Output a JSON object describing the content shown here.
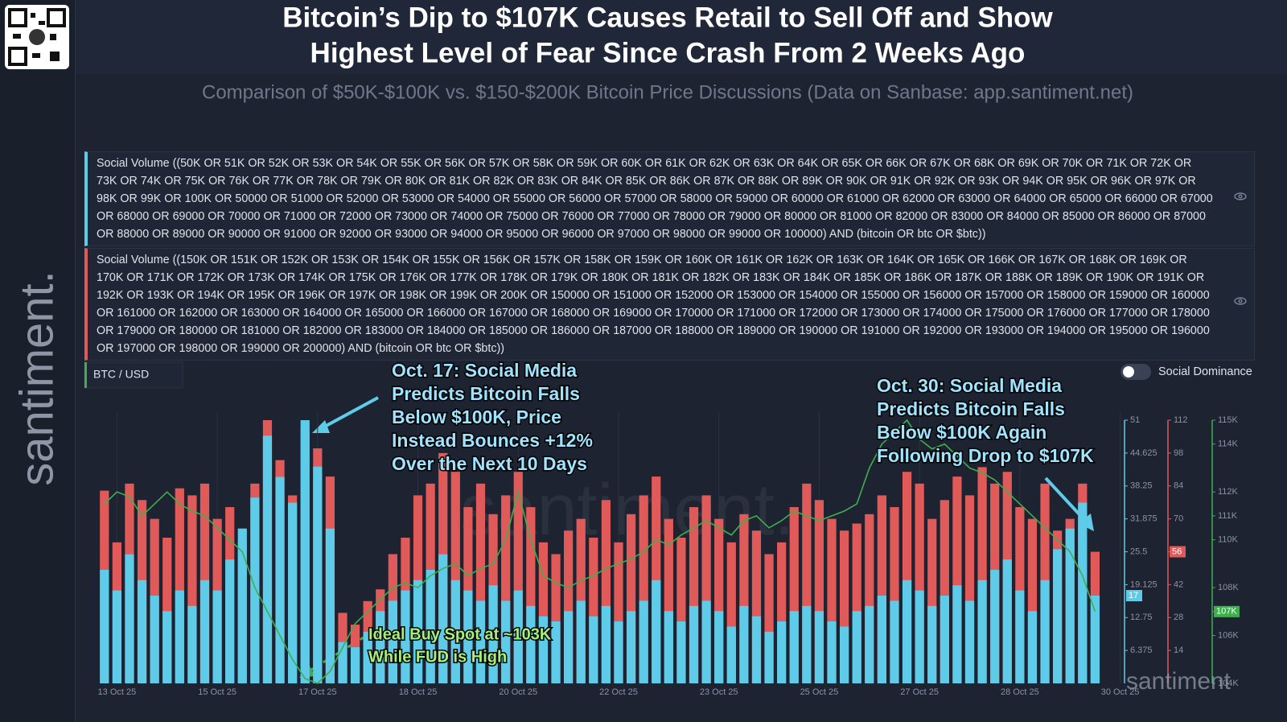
{
  "header": {
    "title_lines": [
      "Bitcoin’s Dip to $107K Causes Retail to Sell Off and Show",
      "Highest Level of Fear Since Crash From 2 Weeks Ago"
    ],
    "subtitle": "Comparison of $50K-$100K vs. $150-$200K Bitcoin Price Discussions (Data on Sanbase: app.santiment.net)"
  },
  "queries": [
    {
      "color": "#5ecbe8",
      "text": "Social Volume ((50K OR 51K OR 52K OR 53K OR 54K OR 55K OR 56K OR 57K OR 58K OR 59K OR 60K OR 61K OR 62K OR 63K OR 64K OR 65K OR 66K OR 67K OR 68K OR 69K OR 70K OR 71K OR 72K OR 73K OR 74K OR 75K OR 76K OR 77K OR 78K OR 79K OR 80K OR 81K OR 82K OR 83K OR 84K OR 85K OR 86K OR 87K OR 88K OR 89K OR 90K OR 91K OR 92K OR 93K OR 94K OR 95K OR 96K OR 97K OR 98K OR 99K OR 100K OR 50000 OR 51000 OR 52000 OR 53000 OR 54000 OR 55000 OR 56000 OR 57000 OR 58000 OR 59000 OR 60000 OR 61000 OR 62000 OR 63000 OR 64000 OR 65000 OR 66000 OR 67000 OR 68000 OR 69000 OR 70000 OR 71000 OR 72000 OR 73000 OR 74000 OR 75000 OR 76000 OR 77000 OR 78000 OR 79000 OR 80000 OR 81000 OR 82000 OR 83000 OR 84000 OR 85000 OR 86000 OR 87000 OR 88000 OR 89000 OR 90000 OR 91000 OR 92000 OR 93000 OR 94000 OR 95000 OR 96000 OR 97000 OR 98000 OR 99000 OR 100000) AND (bitcoin OR btc OR $btc))"
    },
    {
      "color": "#e05a5a",
      "text": "Social Volume ((150K OR 151K OR 152K OR 153K OR 154K OR 155K OR 156K OR 157K OR 158K OR 159K OR 160K OR 161K OR 162K OR 163K OR 164K OR 165K OR 166K OR 167K OR 168K OR 169K OR 170K OR 171K OR 172K OR 173K OR 174K OR 175K OR 176K OR 177K OR 178K OR 179K OR 180K OR 181K OR 182K OR 183K OR 184K OR 185K OR 186K OR 187K OR 188K OR 189K OR 190K OR 191K OR 192K OR 193K OR 194K OR 195K OR 196K OR 197K OR 198K OR 199K OR 200K OR 150000 OR 151000 OR 152000 OR 153000 OR 154000 OR 155000 OR 156000 OR 157000 OR 158000 OR 159000 OR 160000 OR 161000 OR 162000 OR 163000 OR 164000 OR 165000 OR 166000 OR 167000 OR 168000 OR 169000 OR 170000 OR 171000 OR 172000 OR 173000 OR 174000 OR 175000 OR 176000 OR 177000 OR 178000 OR 179000 OR 180000 OR 181000 OR 182000 OR 183000 OR 184000 OR 185000 OR 186000 OR 187000 OR 188000 OR 189000 OR 190000 OR 191000 OR 192000 OR 193000 OR 194000 OR 195000 OR 196000 OR 197000 OR 198000 OR 199000 OR 200000) AND (bitcoin OR btc OR $btc))"
    }
  ],
  "legend": {
    "price": "BTC / USD",
    "toggle": "Social Dominance"
  },
  "watermarks": {
    "side": "santiment.",
    "corner": "santiment",
    "center": "santiment."
  },
  "chart_data": {
    "type": "bar",
    "categories": [
      null,
      "13 Oct 25",
      null,
      null,
      null,
      null,
      null,
      null,
      null,
      "15 Oct 25",
      null,
      null,
      null,
      null,
      null,
      null,
      null,
      "17 Oct 25",
      null,
      null,
      null,
      null,
      null,
      null,
      null,
      "18 Oct 25",
      null,
      null,
      null,
      null,
      null,
      null,
      null,
      "20 Oct 25",
      null,
      null,
      null,
      null,
      null,
      null,
      null,
      "22 Oct 25",
      null,
      null,
      null,
      null,
      null,
      null,
      null,
      "23 Oct 25",
      null,
      null,
      null,
      null,
      null,
      null,
      null,
      "25 Oct 25",
      null,
      null,
      null,
      null,
      null,
      null,
      null,
      "27 Oct 25",
      null,
      null,
      null,
      null,
      null,
      null,
      null,
      "28 Oct 25",
      null,
      null,
      null,
      null,
      null,
      null,
      null,
      "30 Oct 25"
    ],
    "ylim": [
      0,
      51
    ],
    "yticks": [
      6.375,
      12.75,
      19.125,
      25.5,
      31.875,
      38.25,
      44.625,
      51
    ],
    "y_color": "#5ecbe8",
    "y2lim": [
      0,
      112
    ],
    "y2ticks": [
      14,
      28,
      42,
      56,
      70,
      84,
      98,
      112
    ],
    "y2_color": "#e05a5a",
    "y3lim": [
      104,
      115
    ],
    "y3ticks": [
      {
        "value": 104,
        "label": "104K"
      },
      {
        "value": 106,
        "label": "106K"
      },
      {
        "value": 107,
        "label": "107K"
      },
      {
        "value": 108,
        "label": "108K"
      },
      {
        "value": 110,
        "label": "110K"
      },
      {
        "value": 111,
        "label": "111K"
      },
      {
        "value": 112,
        "label": "112K"
      },
      {
        "value": 114,
        "label": "114K"
      },
      {
        "value": 115,
        "label": "115K"
      }
    ],
    "y3_color": "#3fae4f",
    "series": [
      {
        "type": "bar",
        "axis": "y2",
        "color": "#e05a5a",
        "values": [
          82,
          60,
          85,
          78,
          70,
          62,
          83,
          80,
          85,
          70,
          75,
          60,
          85,
          112,
          95,
          80,
          108,
          100,
          88,
          30,
          25,
          35,
          40,
          55,
          62,
          80,
          85,
          98,
          90,
          75,
          85,
          72,
          80,
          90,
          75,
          60,
          55,
          65,
          70,
          62,
          78,
          60,
          72,
          80,
          88,
          70,
          62,
          75,
          80,
          70,
          60,
          72,
          65,
          55,
          60,
          75,
          85,
          78,
          70,
          65,
          68,
          72,
          80,
          75,
          90,
          85,
          70,
          78,
          88,
          80,
          92,
          85,
          90,
          75,
          70,
          85,
          65,
          70,
          85,
          56,
          null,
          null
        ]
      },
      {
        "type": "bar",
        "axis": "y",
        "color": "#5ecbe8",
        "values": [
          22,
          18,
          25,
          20,
          17,
          14,
          18,
          15,
          20,
          18,
          24,
          30,
          36,
          48,
          40,
          35,
          51,
          42,
          30,
          8,
          7,
          10,
          14,
          16,
          18,
          20,
          22,
          25,
          20,
          18,
          16,
          19,
          16,
          18,
          15,
          13,
          12,
          14,
          16,
          13,
          15,
          12,
          14,
          16,
          20,
          14,
          12,
          15,
          16,
          14,
          11,
          15,
          13,
          10,
          12,
          14,
          15,
          14,
          12,
          11,
          14,
          15,
          17,
          16,
          20,
          18,
          15,
          17,
          19,
          16,
          20,
          22,
          24,
          18,
          14,
          20,
          26,
          30,
          35,
          17,
          null,
          null
        ]
      },
      {
        "type": "line",
        "axis": "y3",
        "color": "#3fae4f",
        "last_label": "107K",
        "values": [
          111.5,
          112,
          111.8,
          111,
          111.5,
          112,
          111.5,
          111.2,
          111,
          110.5,
          110,
          109.5,
          108,
          107,
          106,
          105,
          104.2,
          104,
          104.5,
          105.5,
          106.5,
          107,
          107.5,
          108,
          108.2,
          108,
          108.5,
          108.8,
          109,
          108.5,
          108.8,
          109,
          110,
          112,
          110,
          108.5,
          108.2,
          108,
          108.3,
          108.5,
          108.8,
          109,
          109.2,
          109.5,
          110,
          109.8,
          110.2,
          110.5,
          110.8,
          110.5,
          110.2,
          110.8,
          111,
          110.5,
          110.8,
          111.2,
          111,
          110.8,
          111,
          111.2,
          111.5,
          113,
          114,
          114.5,
          115,
          114.2,
          113.8,
          114,
          113.5,
          113,
          112.8,
          112.5,
          112,
          111.5,
          111,
          110.5,
          110,
          109.5,
          108.5,
          107,
          null,
          null
        ]
      }
    ],
    "annotations": [
      {
        "color": "#9fe3ff",
        "lines": [
          "Oct. 17: Social Media",
          "Predicts Bitcoin Falls",
          "Below $100K, Price",
          "Instead Bounces +12%",
          "Over the Next 10 Days"
        ]
      },
      {
        "color": "#9fe3ff",
        "lines": [
          "Oct. 30: Social Media",
          "Predicts Bitcoin Falls",
          "Below $100K Again",
          "Following Drop to $107K"
        ]
      },
      {
        "color": "#a6ef7a",
        "lines": [
          "Ideal Buy Spot at ~103K",
          "While FUD is High"
        ]
      }
    ]
  }
}
